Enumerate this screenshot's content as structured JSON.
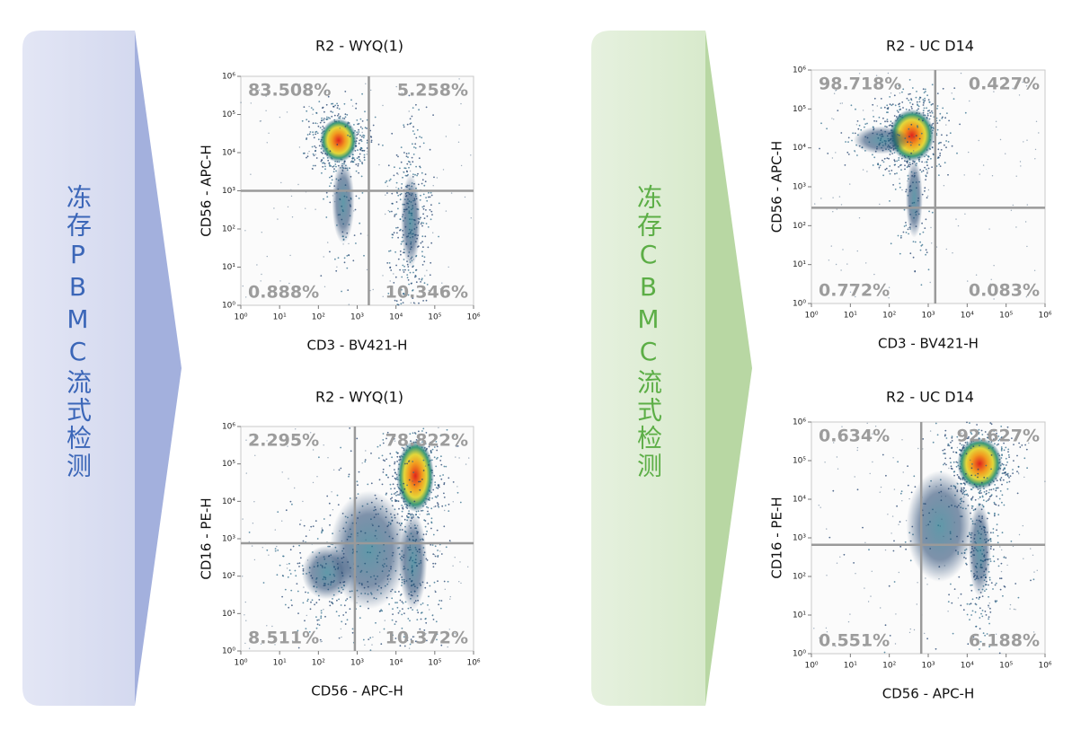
{
  "sections": [
    {
      "label": "冻存PBMC流式检测",
      "plots": [
        {
          "title": "R2 - WYQ(1)",
          "x_label": "CD3 - BV421-H",
          "y_label": "CD56 - APC-H",
          "quadrants": [
            "83.508%",
            "5.258%",
            "0.888%",
            "10.346%"
          ],
          "x_ticks": [
            "10⁰",
            "10¹",
            "10²",
            "10³",
            "10⁴",
            "10⁵",
            "10⁶"
          ],
          "y_ticks": [
            "10⁰",
            "10¹",
            "10²",
            "10³",
            "10⁴",
            "10⁵",
            "10⁶"
          ]
        },
        {
          "title": "R2 - WYQ(1)",
          "x_label": "CD56 - APC-H",
          "y_label": "CD16 - PE-H",
          "quadrants": [
            "2.295%",
            "78.822%",
            "8.511%",
            "10.372%"
          ],
          "x_ticks": [
            "10⁰",
            "10¹",
            "10²",
            "10³",
            "10⁴",
            "10⁵",
            "10⁶"
          ],
          "y_ticks": [
            "10⁰",
            "10¹",
            "10²",
            "10³",
            "10⁴",
            "10⁵",
            "10⁶"
          ]
        }
      ]
    },
    {
      "label": "冻存CBMC流式检测",
      "plots": [
        {
          "title": "R2 - UC D14",
          "x_label": "CD3 - BV421-H",
          "y_label": "CD56 - APC-H",
          "quadrants": [
            "98.718%",
            "0.427%",
            "0.772%",
            "0.083%"
          ],
          "x_ticks": [
            "10⁰",
            "10¹",
            "10²",
            "10³",
            "10⁴",
            "10⁵",
            "10⁶"
          ],
          "y_ticks": [
            "10⁰",
            "10¹",
            "10²",
            "10³",
            "10⁴",
            "10⁵",
            "10⁶"
          ]
        },
        {
          "title": "R2 - UC D14",
          "x_label": "CD56 - APC-H",
          "y_label": "CD16 - PE-H",
          "quadrants": [
            "0.634%",
            "92.627%",
            "0.551%",
            "6.188%"
          ],
          "x_ticks": [
            "10⁰",
            "10¹",
            "10²",
            "10³",
            "10⁴",
            "10⁵",
            "10⁶"
          ],
          "y_ticks": [
            "10⁰",
            "10¹",
            "10²",
            "10³",
            "10⁴",
            "10⁵",
            "10⁶"
          ]
        }
      ]
    }
  ]
}
